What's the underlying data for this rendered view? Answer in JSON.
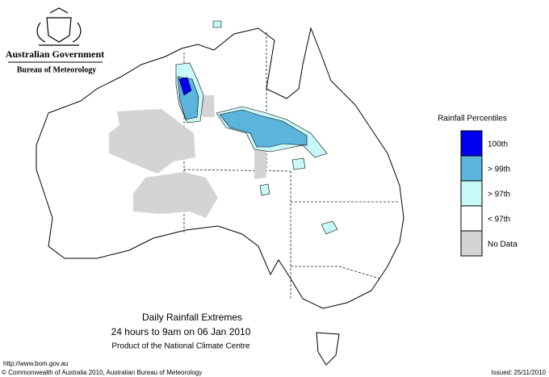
{
  "header": {
    "title": "Australian Government",
    "subtitle": "Bureau of Meteorology"
  },
  "legend": {
    "title": "Rainfall Percentiles",
    "items": [
      {
        "label": "100th",
        "color": "#0000ee"
      },
      {
        "label": "> 99th",
        "color": "#5ab4dc"
      },
      {
        "label": "> 97th",
        "color": "#c8f8f8"
      },
      {
        "label": "< 97th",
        "color": "#ffffff"
      },
      {
        "label": "No Data",
        "color": "#d4d4d4"
      }
    ]
  },
  "caption": {
    "title": "Daily Rainfall Extremes",
    "period": "24 hours to 9am on 06 Jan 2010",
    "credit": "Product of the National Climate Centre"
  },
  "footer": {
    "url": "http://www.bom.gov.au",
    "copyright": "© Commonwealth of Australia 2010, Australian Bureau of Meteorology",
    "issued": "Issued: 25/11/2010"
  }
}
